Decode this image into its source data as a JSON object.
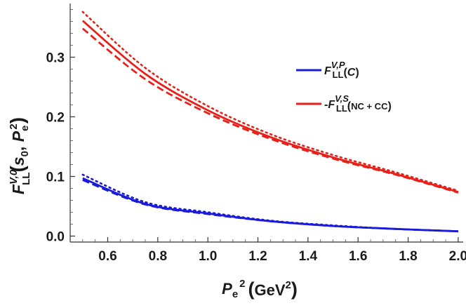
{
  "chart_data": {
    "type": "line",
    "x_range": [
      0.5,
      2.0
    ],
    "ylim": [
      -0.01,
      0.39
    ],
    "x_ticks": [
      "0.6",
      "0.8",
      "1.0",
      "1.2",
      "1.4",
      "1.6",
      "1.8",
      "2.0"
    ],
    "x_tick_values": [
      0.6,
      0.8,
      1.0,
      1.2,
      1.4,
      1.6,
      1.8,
      2.0
    ],
    "y_ticks": [
      "0.0",
      "0.1",
      "0.2",
      "0.3"
    ],
    "y_tick_values": [
      0.0,
      0.1,
      0.2,
      0.3
    ],
    "xlabel": {
      "base": "P",
      "sub": "e",
      "sup": "2",
      "unit": "GeV",
      "unit_sup": "2"
    },
    "ylabel": {
      "base": "F",
      "sup": "V,0",
      "sub": "LL",
      "arg1": "s",
      "arg1_sub": "0",
      "sep": ", ",
      "arg2": "P",
      "arg2_sub": "e",
      "arg2_sup": "2"
    },
    "legend": {
      "placement": "right",
      "entries": [
        {
          "color": "#1a1adb",
          "prefix": "",
          "base": "F",
          "sup": "V,P",
          "sub": "LL",
          "arg": "C"
        },
        {
          "color": "#e8201a",
          "prefix": "-",
          "base": "F",
          "sup": "V,S",
          "sub": "LL",
          "arg": "NC + CC"
        }
      ]
    },
    "series": [
      {
        "color": "#e8201a",
        "style": "solid",
        "x": [
          0.5,
          0.75,
          1.0,
          1.25,
          1.5,
          1.75,
          2.0
        ],
        "y": [
          0.361,
          0.272,
          0.211,
          0.166,
          0.132,
          0.104,
          0.074
        ]
      },
      {
        "color": "#e8201a",
        "style": "dashed",
        "x": [
          0.5,
          0.75,
          1.0,
          1.25,
          1.5,
          1.75,
          2.0
        ],
        "y": [
          0.348,
          0.263,
          0.206,
          0.163,
          0.13,
          0.103,
          0.073
        ]
      },
      {
        "color": "#e8201a",
        "style": "dotted",
        "x": [
          0.5,
          0.75,
          1.0,
          1.25,
          1.5,
          1.75,
          2.0
        ],
        "y": [
          0.376,
          0.282,
          0.218,
          0.171,
          0.136,
          0.107,
          0.076
        ]
      },
      {
        "color": "#1a1adb",
        "style": "solid",
        "x": [
          0.5,
          0.75,
          1.0,
          1.25,
          1.5,
          1.75,
          2.0
        ],
        "y": [
          0.097,
          0.054,
          0.038,
          0.025,
          0.017,
          0.012,
          0.008
        ]
      },
      {
        "color": "#1a1adb",
        "style": "dashed",
        "x": [
          0.5,
          0.75,
          1.0,
          1.25,
          1.5,
          1.75,
          2.0
        ],
        "y": [
          0.094,
          0.053,
          0.037,
          0.025,
          0.017,
          0.012,
          0.008
        ]
      },
      {
        "color": "#1a1adb",
        "style": "dotted",
        "x": [
          0.5,
          0.75,
          1.0,
          1.25,
          1.5,
          1.75,
          2.0
        ],
        "y": [
          0.103,
          0.057,
          0.04,
          0.026,
          0.018,
          0.012,
          0.008
        ]
      }
    ]
  }
}
